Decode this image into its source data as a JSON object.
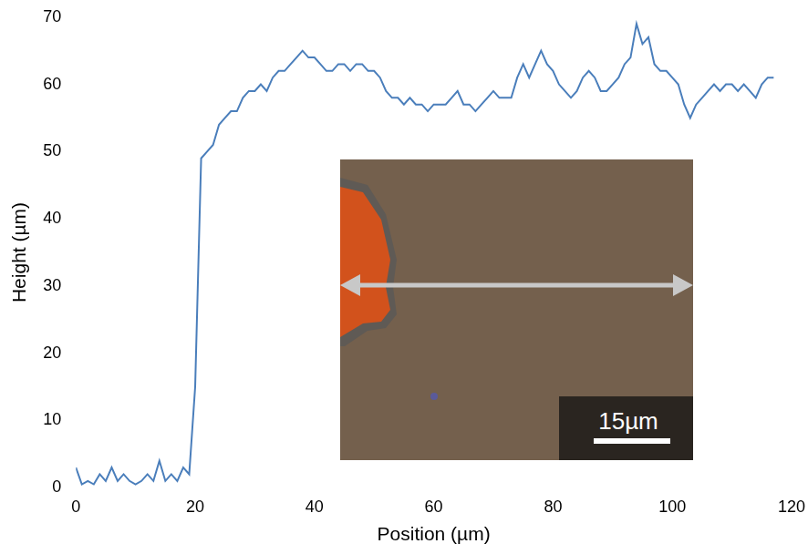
{
  "chart_data": {
    "type": "line",
    "x_label": "Position (µm)",
    "y_label": "Height (µm)",
    "x": [
      0,
      1,
      2,
      3,
      4,
      5,
      6,
      7,
      8,
      9,
      10,
      11,
      12,
      13,
      14,
      15,
      16,
      17,
      18,
      19,
      20,
      21,
      22,
      23,
      24,
      25,
      26,
      27,
      28,
      29,
      30,
      31,
      32,
      33,
      34,
      35,
      36,
      37,
      38,
      39,
      40,
      41,
      42,
      43,
      44,
      45,
      46,
      47,
      48,
      49,
      50,
      51,
      52,
      53,
      54,
      55,
      56,
      57,
      58,
      59,
      60,
      61,
      62,
      63,
      64,
      65,
      66,
      67,
      68,
      69,
      70,
      71,
      72,
      73,
      74,
      75,
      76,
      77,
      78,
      79,
      80,
      81,
      82,
      83,
      84,
      85,
      86,
      87,
      88,
      89,
      90,
      91,
      92,
      93,
      94,
      95,
      96,
      97,
      98,
      99,
      100,
      101,
      102,
      103,
      104,
      105,
      106,
      107,
      108,
      109,
      110,
      111,
      112,
      113,
      114,
      115,
      116,
      117
    ],
    "values": [
      3,
      0.5,
      1,
      0.5,
      2,
      1,
      3,
      1,
      2,
      1,
      0.5,
      1,
      2,
      1,
      4,
      1,
      2,
      1,
      3,
      2,
      15,
      49,
      50,
      51,
      54,
      55,
      56,
      56,
      58,
      59,
      59,
      60,
      59,
      61,
      62,
      62,
      63,
      64,
      65,
      64,
      64,
      63,
      62,
      62,
      63,
      63,
      62,
      63,
      63,
      62,
      62,
      61,
      59,
      58,
      58,
      57,
      58,
      57,
      57,
      56,
      57,
      57,
      57,
      58,
      59,
      57,
      57,
      56,
      57,
      58,
      59,
      58,
      58,
      58,
      61,
      63,
      61,
      63,
      65,
      63,
      62,
      60,
      59,
      58,
      59,
      61,
      62,
      61,
      59,
      59,
      60,
      61,
      63,
      64,
      69,
      66,
      67,
      63,
      62,
      62,
      61,
      60,
      57,
      55,
      57,
      58,
      59,
      60,
      59,
      60,
      60,
      59,
      60,
      59,
      58,
      60,
      61,
      61
    ],
    "color": "#4a7ebb",
    "xlim": [
      0,
      120
    ],
    "xticks": [
      0,
      20,
      40,
      60,
      80,
      100,
      120
    ],
    "ylim": [
      0,
      70
    ],
    "yticks": [
      0,
      10,
      20,
      30,
      40,
      50,
      60,
      70
    ],
    "grid": false,
    "annotation": "15µm"
  }
}
